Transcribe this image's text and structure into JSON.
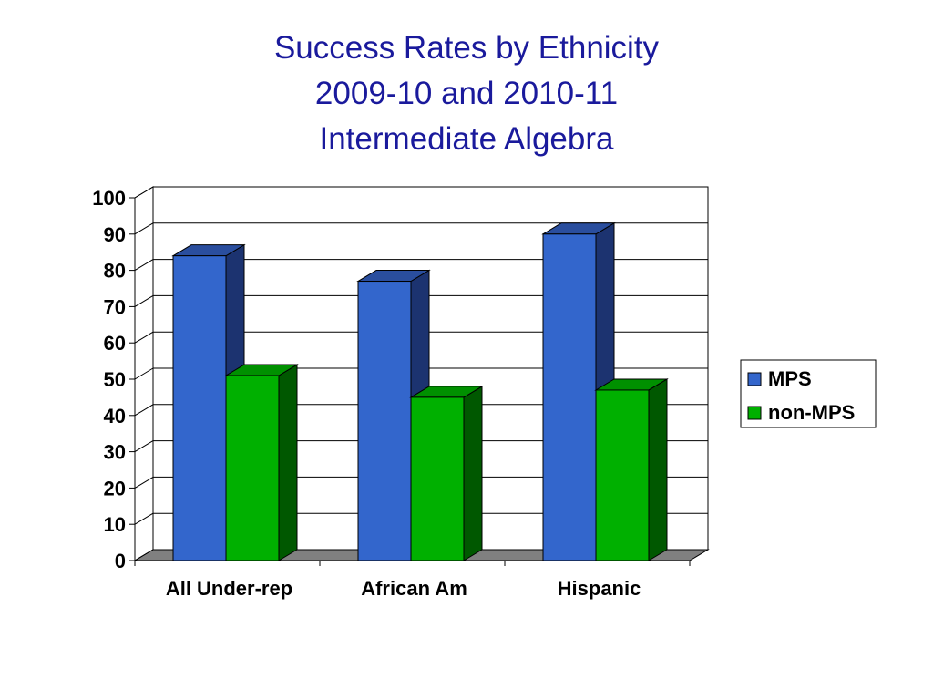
{
  "chart_data": {
    "type": "bar",
    "title_lines": [
      "Success Rates by Ethnicity",
      "2009-10 and 2010-11",
      "Intermediate Algebra"
    ],
    "categories": [
      "All Under-rep",
      "African Am",
      "Hispanic"
    ],
    "series": [
      {
        "name": "MPS",
        "values": [
          84,
          77,
          90
        ],
        "color": "#3366cc",
        "side_color": "#1c3370",
        "top_color": "#2a4e9e"
      },
      {
        "name": "non-MPS",
        "values": [
          51,
          45,
          47
        ],
        "color": "#00b000",
        "side_color": "#005800",
        "top_color": "#009000"
      }
    ],
    "ylim": [
      0,
      100
    ],
    "yticks": [
      "0",
      "10",
      "20",
      "30",
      "40",
      "50",
      "60",
      "70",
      "80",
      "90",
      "100"
    ],
    "xlabel": "",
    "ylabel": "",
    "grid": true,
    "three_d": true,
    "legend_position": "right",
    "floor_color": "#808080"
  }
}
